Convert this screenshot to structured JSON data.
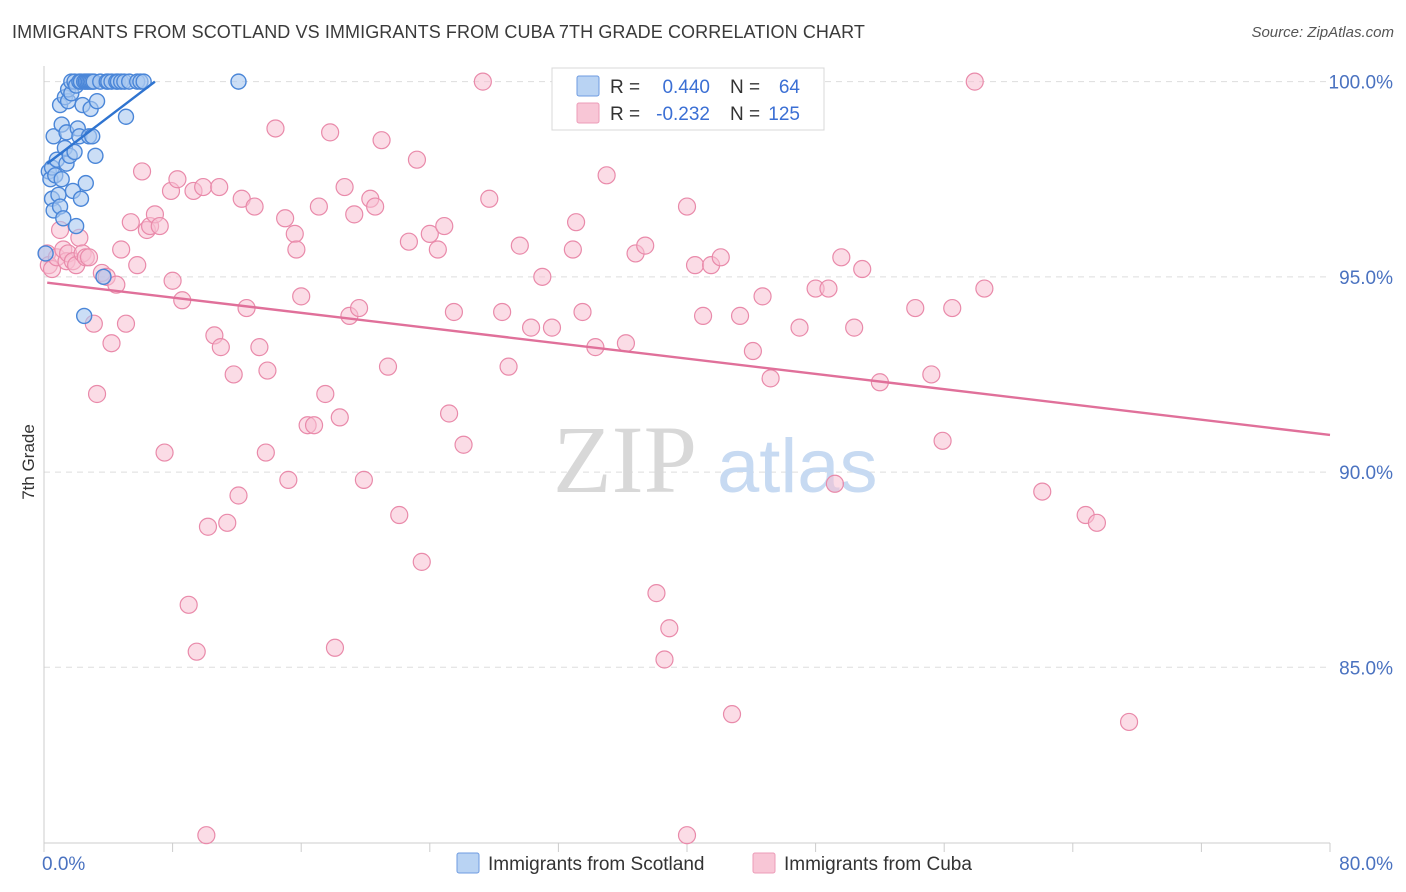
{
  "title": "IMMIGRANTS FROM SCOTLAND VS IMMIGRANTS FROM CUBA 7TH GRADE CORRELATION CHART",
  "source": "Source: ZipAtlas.com",
  "watermark": {
    "zip": "ZIP",
    "atlas": "atlas"
  },
  "colors": {
    "scotland_fill": "#a9c8f0",
    "scotland_stroke": "#4a86d8",
    "scotland_line": "#2f74d0",
    "cuba_fill": "#f7c0d2",
    "cuba_stroke": "#e98aaa",
    "cuba_line": "#e0709a",
    "grid": "#dddddd",
    "axis": "#cccccc",
    "tick_label": "#4a72c0"
  },
  "legend_box": {
    "rows": [
      {
        "r_label": "R =",
        "r_value": "0.440",
        "n_label": "N =",
        "n_value": "64"
      },
      {
        "r_label": "R =",
        "r_value": "-0.232",
        "n_label": "N =",
        "n_value": "125"
      }
    ]
  },
  "chart_data": {
    "type": "scatter",
    "title": "IMMIGRANTS FROM SCOTLAND VS IMMIGRANTS FROM CUBA 7TH GRADE CORRELATION CHART",
    "xlabel": "",
    "ylabel": "7th Grade",
    "xlim": [
      0,
      80
    ],
    "ylim": [
      80.5,
      100.4
    ],
    "x_tick_labels": [
      {
        "value": 0,
        "label": "0.0%"
      },
      {
        "value": 80,
        "label": "80.0%"
      }
    ],
    "x_minor_ticks": [
      0,
      8,
      16,
      24,
      32,
      40,
      48,
      56,
      64,
      72,
      80
    ],
    "y_ticks": [
      {
        "value": 100,
        "label": "100.0%"
      },
      {
        "value": 95,
        "label": "95.0%"
      },
      {
        "value": 90,
        "label": "90.0%"
      },
      {
        "value": 85,
        "label": "85.0%"
      }
    ],
    "grid": true,
    "legend": "bottom-center",
    "series": [
      {
        "name": "Immigrants from Scotland",
        "color": "#a9c8f0",
        "r": 0.44,
        "n": 64,
        "trend": {
          "x": [
            0.2,
            6.9
          ],
          "y": [
            97.9,
            100.0
          ]
        },
        "points": [
          [
            0.1,
            95.6
          ],
          [
            0.3,
            97.7
          ],
          [
            0.4,
            97.5
          ],
          [
            0.5,
            97.0
          ],
          [
            0.5,
            97.8
          ],
          [
            0.6,
            98.6
          ],
          [
            0.6,
            96.7
          ],
          [
            0.7,
            97.6
          ],
          [
            0.8,
            98.0
          ],
          [
            0.9,
            97.1
          ],
          [
            1.0,
            96.8
          ],
          [
            1.0,
            99.4
          ],
          [
            1.1,
            98.9
          ],
          [
            1.1,
            97.5
          ],
          [
            1.2,
            96.5
          ],
          [
            1.3,
            98.3
          ],
          [
            1.3,
            99.6
          ],
          [
            1.4,
            98.7
          ],
          [
            1.4,
            97.9
          ],
          [
            1.5,
            99.5
          ],
          [
            1.5,
            99.8
          ],
          [
            1.6,
            98.1
          ],
          [
            1.7,
            99.7
          ],
          [
            1.7,
            100.0
          ],
          [
            1.8,
            97.2
          ],
          [
            1.9,
            100.0
          ],
          [
            1.9,
            98.2
          ],
          [
            2.0,
            96.3
          ],
          [
            2.0,
            99.9
          ],
          [
            2.1,
            98.8
          ],
          [
            2.2,
            100.0
          ],
          [
            2.2,
            98.6
          ],
          [
            2.3,
            97.0
          ],
          [
            2.3,
            100.0
          ],
          [
            2.4,
            99.4
          ],
          [
            2.5,
            94.0
          ],
          [
            2.5,
            100.0
          ],
          [
            2.6,
            97.4
          ],
          [
            2.6,
            100.0
          ],
          [
            2.7,
            100.0
          ],
          [
            2.8,
            98.6
          ],
          [
            2.8,
            100.0
          ],
          [
            2.9,
            100.0
          ],
          [
            2.9,
            99.3
          ],
          [
            3.0,
            98.6
          ],
          [
            3.0,
            100.0
          ],
          [
            3.1,
            100.0
          ],
          [
            3.2,
            98.1
          ],
          [
            3.3,
            99.5
          ],
          [
            3.5,
            100.0
          ],
          [
            3.7,
            95.0
          ],
          [
            3.9,
            100.0
          ],
          [
            4.0,
            100.0
          ],
          [
            4.2,
            100.0
          ],
          [
            4.5,
            100.0
          ],
          [
            4.6,
            100.0
          ],
          [
            4.8,
            100.0
          ],
          [
            5.0,
            100.0
          ],
          [
            5.1,
            99.1
          ],
          [
            5.3,
            100.0
          ],
          [
            5.8,
            100.0
          ],
          [
            6.0,
            100.0
          ],
          [
            6.2,
            100.0
          ],
          [
            12.1,
            100.0
          ]
        ]
      },
      {
        "name": "Immigrants from Cuba",
        "color": "#f7c0d2",
        "r": -0.232,
        "n": 125,
        "trend": {
          "x": [
            0.2,
            80.0
          ],
          "y": [
            94.85,
            90.95
          ]
        },
        "points": [
          [
            0.2,
            95.6
          ],
          [
            0.3,
            95.3
          ],
          [
            0.5,
            95.2
          ],
          [
            0.8,
            95.5
          ],
          [
            1.0,
            96.2
          ],
          [
            1.2,
            95.7
          ],
          [
            1.4,
            95.4
          ],
          [
            1.5,
            95.6
          ],
          [
            1.8,
            95.4
          ],
          [
            2.0,
            95.3
          ],
          [
            2.2,
            96.0
          ],
          [
            2.4,
            95.6
          ],
          [
            2.6,
            95.5
          ],
          [
            2.8,
            95.5
          ],
          [
            3.1,
            93.8
          ],
          [
            3.3,
            92.0
          ],
          [
            3.6,
            95.1
          ],
          [
            3.9,
            95.0
          ],
          [
            4.2,
            93.3
          ],
          [
            4.5,
            94.8
          ],
          [
            4.8,
            95.7
          ],
          [
            5.1,
            93.8
          ],
          [
            5.4,
            96.4
          ],
          [
            5.8,
            95.3
          ],
          [
            6.1,
            97.7
          ],
          [
            6.4,
            96.2
          ],
          [
            6.6,
            96.3
          ],
          [
            6.9,
            96.6
          ],
          [
            7.2,
            96.3
          ],
          [
            7.5,
            90.5
          ],
          [
            7.9,
            97.2
          ],
          [
            8.0,
            94.9
          ],
          [
            8.3,
            97.5
          ],
          [
            8.6,
            94.4
          ],
          [
            9.0,
            86.6
          ],
          [
            9.3,
            97.2
          ],
          [
            9.5,
            85.4
          ],
          [
            9.9,
            97.3
          ],
          [
            10.2,
            88.6
          ],
          [
            10.6,
            93.5
          ],
          [
            10.9,
            97.3
          ],
          [
            11.0,
            93.2
          ],
          [
            11.4,
            88.7
          ],
          [
            11.8,
            92.5
          ],
          [
            12.1,
            89.4
          ],
          [
            12.3,
            97.0
          ],
          [
            12.6,
            94.2
          ],
          [
            13.1,
            96.8
          ],
          [
            13.4,
            93.2
          ],
          [
            13.8,
            90.5
          ],
          [
            13.9,
            92.6
          ],
          [
            14.4,
            98.8
          ],
          [
            15.0,
            96.5
          ],
          [
            15.2,
            89.8
          ],
          [
            15.6,
            96.1
          ],
          [
            15.7,
            95.7
          ],
          [
            16.0,
            94.5
          ],
          [
            16.4,
            91.2
          ],
          [
            16.8,
            91.2
          ],
          [
            17.1,
            96.8
          ],
          [
            17.5,
            92.0
          ],
          [
            17.8,
            98.7
          ],
          [
            18.1,
            85.5
          ],
          [
            18.4,
            91.4
          ],
          [
            18.7,
            97.3
          ],
          [
            19.0,
            94.0
          ],
          [
            19.3,
            96.6
          ],
          [
            19.6,
            94.2
          ],
          [
            19.9,
            89.8
          ],
          [
            20.3,
            97.0
          ],
          [
            20.6,
            96.8
          ],
          [
            21.0,
            98.5
          ],
          [
            21.4,
            92.7
          ],
          [
            22.1,
            88.9
          ],
          [
            22.7,
            95.9
          ],
          [
            23.2,
            98.0
          ],
          [
            23.5,
            87.7
          ],
          [
            24.0,
            96.1
          ],
          [
            24.5,
            95.7
          ],
          [
            24.9,
            96.3
          ],
          [
            25.2,
            91.5
          ],
          [
            25.5,
            94.1
          ],
          [
            26.1,
            90.7
          ],
          [
            27.3,
            100.0
          ],
          [
            27.7,
            97.0
          ],
          [
            28.5,
            94.1
          ],
          [
            28.9,
            92.7
          ],
          [
            29.6,
            95.8
          ],
          [
            30.3,
            93.7
          ],
          [
            31.0,
            95.0
          ],
          [
            31.6,
            93.7
          ],
          [
            32.2,
            100.0
          ],
          [
            32.9,
            95.7
          ],
          [
            33.1,
            96.4
          ],
          [
            33.5,
            94.1
          ],
          [
            34.3,
            93.2
          ],
          [
            35.0,
            97.6
          ],
          [
            36.2,
            93.3
          ],
          [
            36.8,
            95.6
          ],
          [
            37.4,
            95.8
          ],
          [
            38.1,
            86.9
          ],
          [
            38.6,
            85.2
          ],
          [
            38.9,
            86.0
          ],
          [
            40.0,
            96.8
          ],
          [
            40.5,
            95.3
          ],
          [
            41.0,
            94.0
          ],
          [
            41.5,
            95.3
          ],
          [
            42.1,
            95.5
          ],
          [
            42.8,
            83.8
          ],
          [
            43.3,
            94.0
          ],
          [
            44.1,
            93.1
          ],
          [
            44.7,
            94.5
          ],
          [
            45.2,
            92.4
          ],
          [
            47.0,
            93.7
          ],
          [
            48.0,
            94.7
          ],
          [
            48.8,
            94.7
          ],
          [
            49.2,
            89.7
          ],
          [
            49.6,
            95.5
          ],
          [
            50.4,
            93.7
          ],
          [
            50.9,
            95.2
          ],
          [
            52.0,
            92.3
          ],
          [
            54.2,
            94.2
          ],
          [
            55.2,
            92.5
          ],
          [
            55.9,
            90.8
          ],
          [
            56.5,
            94.2
          ],
          [
            57.9,
            100.0
          ],
          [
            58.5,
            94.7
          ],
          [
            62.1,
            89.5
          ],
          [
            64.8,
            88.9
          ],
          [
            65.5,
            88.7
          ],
          [
            67.5,
            83.6
          ],
          [
            40.0,
            80.7
          ],
          [
            10.1,
            80.7
          ]
        ]
      }
    ]
  },
  "bottom_legend": [
    {
      "label": "Immigrants from Scotland"
    },
    {
      "label": "Immigrants from Cuba"
    }
  ]
}
